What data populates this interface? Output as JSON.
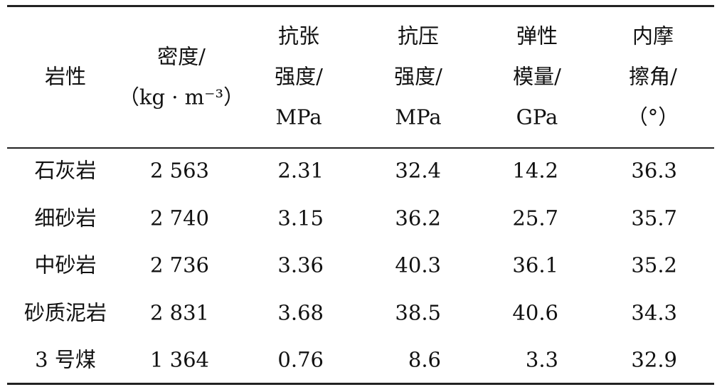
{
  "table": {
    "header": [
      [
        "岩性"
      ],
      [
        "密度/",
        "（kg · m⁻³）"
      ],
      [
        "抗张",
        "强度/",
        "MPa"
      ],
      [
        "抗压",
        "强度/",
        "MPa"
      ],
      [
        "弹性",
        "模量/",
        "GPa"
      ],
      [
        "内摩",
        "擦角/",
        "（°）"
      ]
    ],
    "rows": [
      [
        "石灰岩",
        "2 563",
        "2.31",
        "32.4",
        "14.2",
        "36.3"
      ],
      [
        "细砂岩",
        "2 740",
        "3.15",
        "36.2",
        "25.7",
        "35.7"
      ],
      [
        "中砂岩",
        "2 736",
        "3.36",
        "40.3",
        "36.1",
        "35.2"
      ],
      [
        "砂质泥岩",
        "2 831",
        "3.68",
        "38.5",
        "40.6",
        "34.3"
      ],
      [
        "3 号煤",
        "1 364",
        "0.76",
        "8.6",
        "3.3",
        "32.9"
      ]
    ]
  }
}
